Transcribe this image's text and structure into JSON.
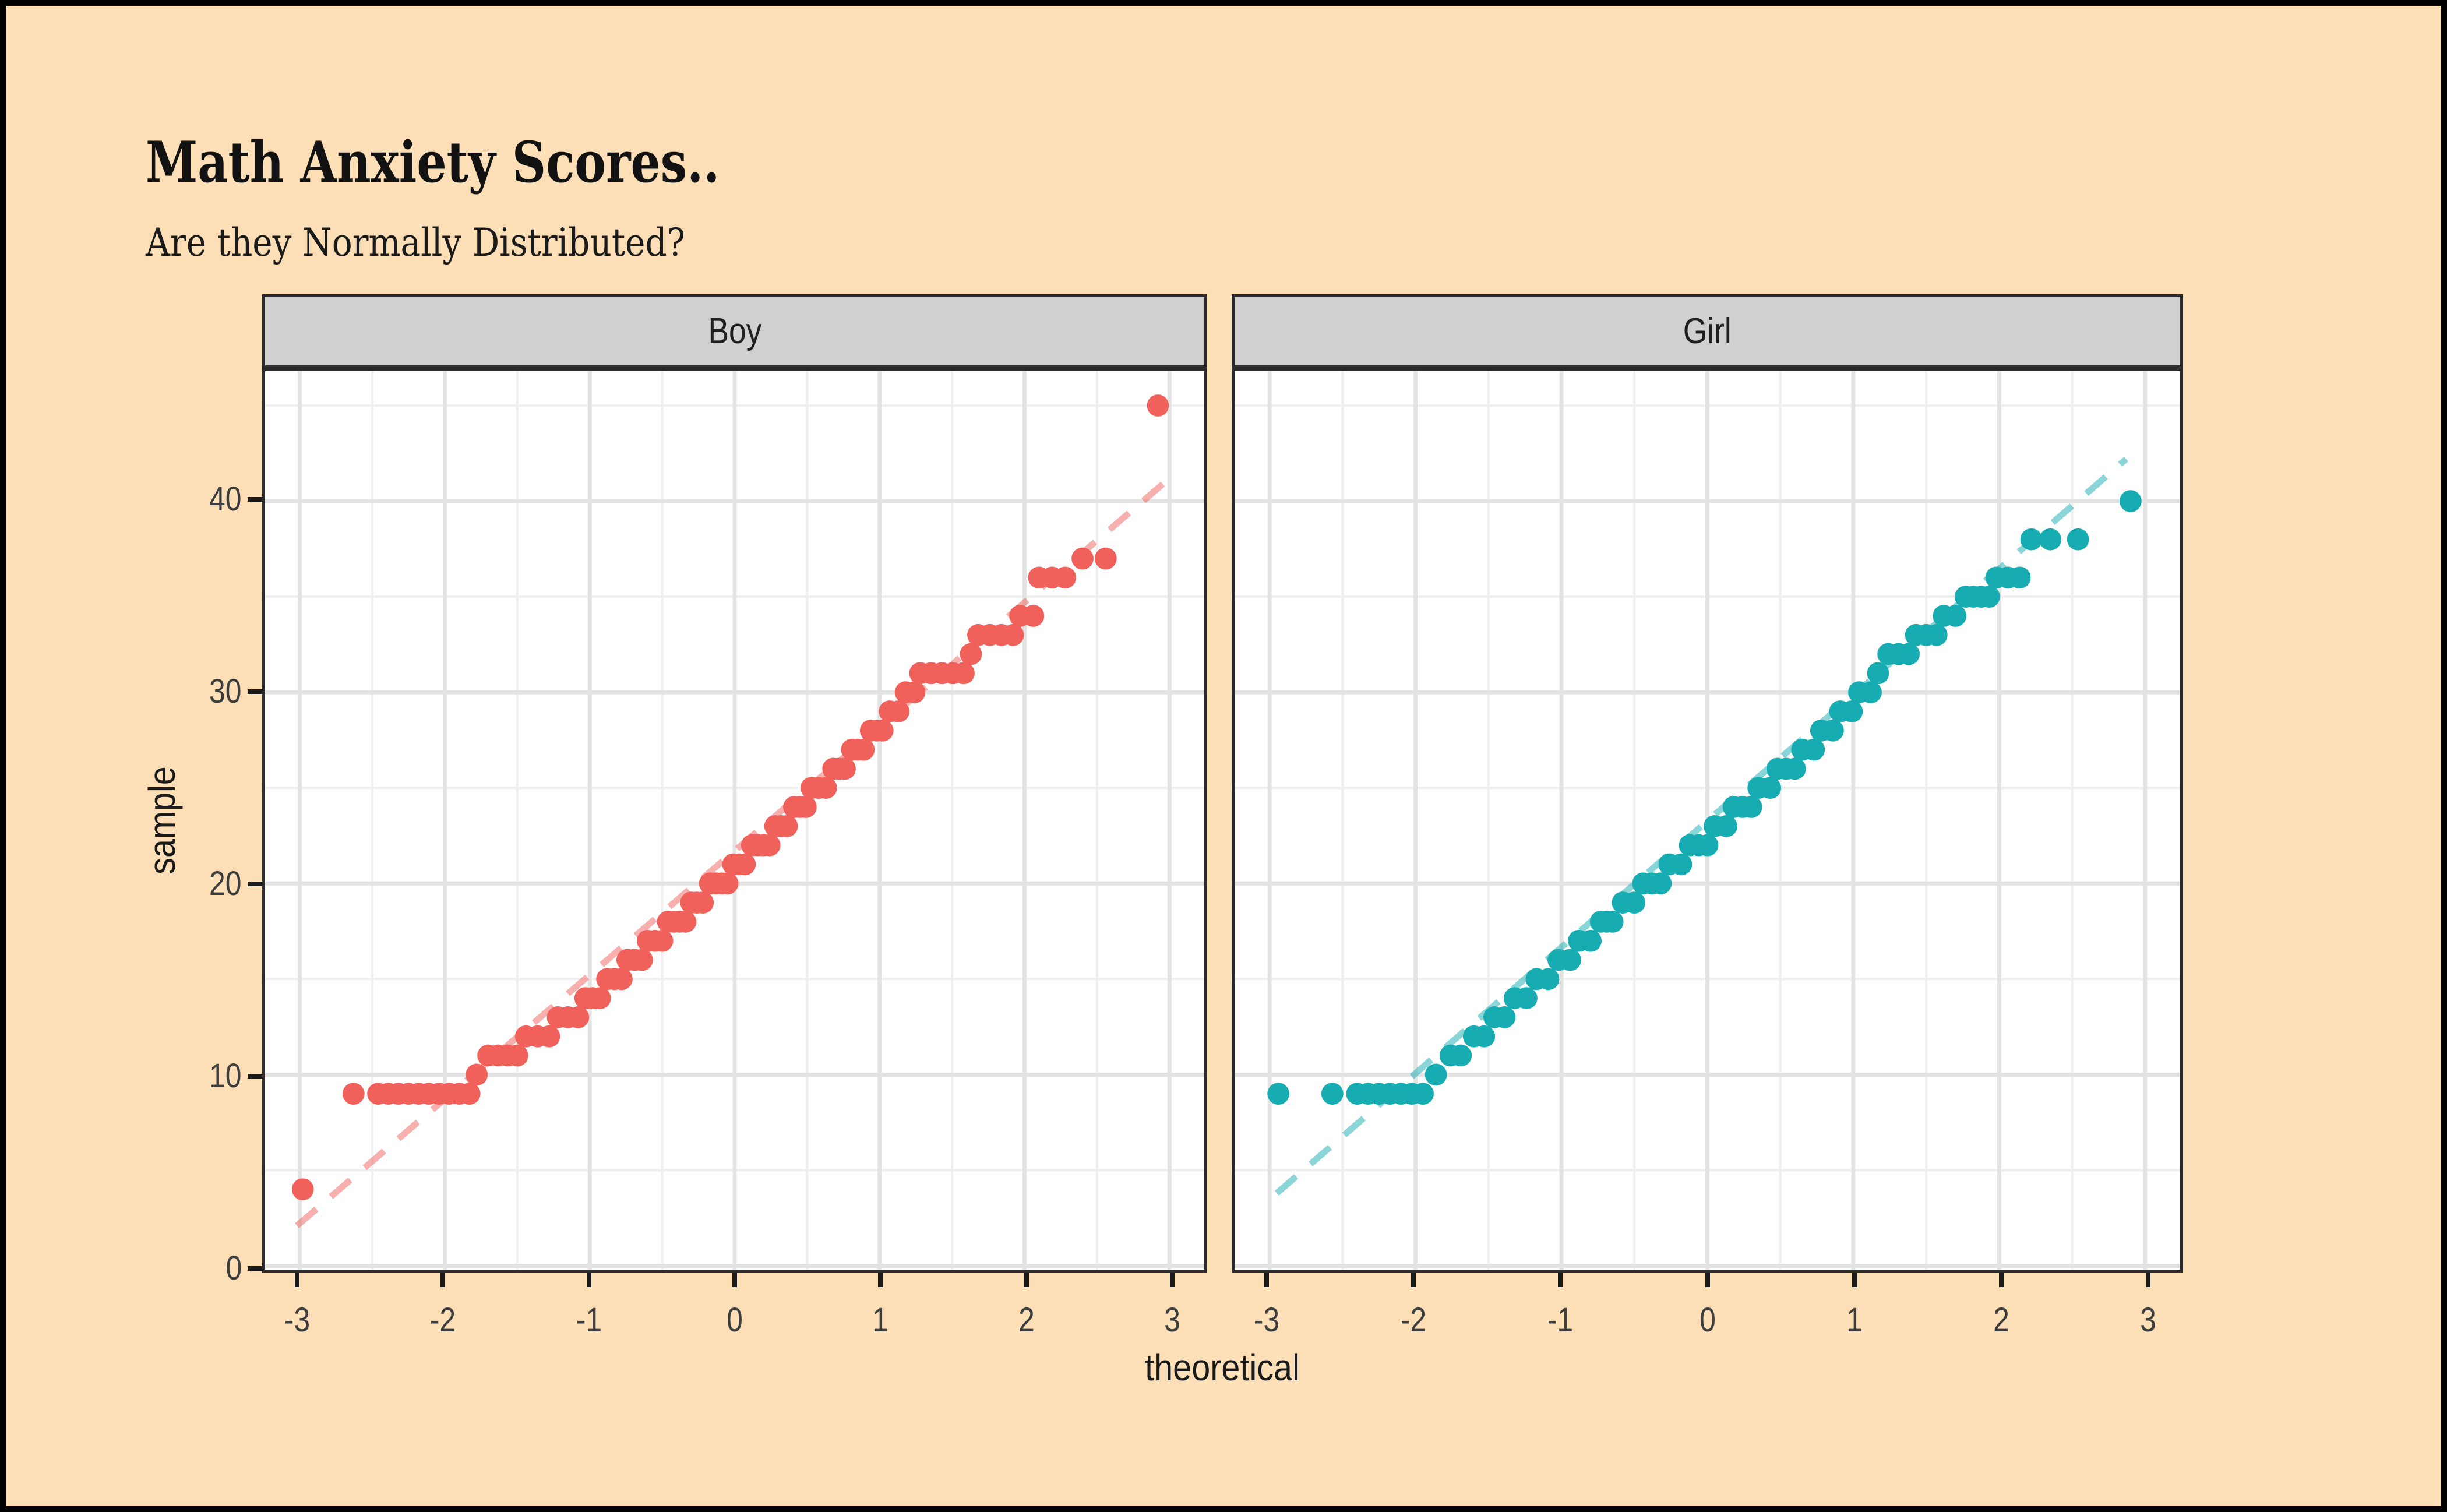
{
  "frame": {
    "background": "#FCDFB7",
    "border_color": "#000000"
  },
  "header": {
    "title": "Math Anxiety Scores..",
    "subtitle": "Are they Normally Distributed?"
  },
  "chart_data": {
    "type": "scatter",
    "subtype": "faceted-qq-plot",
    "title": "Math Anxiety Scores..",
    "subtitle": "Are they Normally Distributed?",
    "xlabel": "theoretical",
    "ylabel": "sample",
    "x_ticks": [
      -3,
      -2,
      -1,
      0,
      1,
      2,
      3
    ],
    "y_ticks": [
      0,
      10,
      20,
      30,
      40
    ],
    "xlim": [
      -3.24,
      3.24
    ],
    "ylim": [
      -0.2,
      46.8
    ],
    "grid": {
      "major_color": "#E3E3E3",
      "minor_color": "#EFEFEF",
      "x_minor": [
        -2.5,
        -1.5,
        -0.5,
        0.5,
        1.5,
        2.5
      ],
      "y_minor": [
        5,
        15,
        25,
        35,
        45
      ]
    },
    "panel_background": "#FFFFFF",
    "strip_background": "#D0D0D0",
    "strip_border": "#2B2B2B",
    "point_radius": 19,
    "legend": "none",
    "facets": [
      {
        "label": "Boy",
        "point_color": "#F0615C",
        "line_color": "rgba(240,97,92,0.5)",
        "qq_line": {
          "x1": -3.02,
          "y1": 2.1,
          "x2": 2.97,
          "y2": 41.0
        },
        "runs_format": [
          "sample_y",
          "x_from",
          "x_to",
          "count"
        ],
        "runs": [
          [
            4,
            -2.98,
            -2.98,
            1
          ],
          [
            9,
            -2.63,
            -2.63,
            1
          ],
          [
            9,
            -2.46,
            -1.83,
            10
          ],
          [
            10,
            -1.78,
            -1.78,
            1
          ],
          [
            11,
            -1.7,
            -1.5,
            4
          ],
          [
            12,
            -1.44,
            -1.28,
            3
          ],
          [
            13,
            -1.22,
            -1.08,
            3
          ],
          [
            14,
            -1.03,
            -0.93,
            3
          ],
          [
            15,
            -0.88,
            -0.78,
            3
          ],
          [
            16,
            -0.74,
            -0.64,
            3
          ],
          [
            17,
            -0.6,
            -0.5,
            3
          ],
          [
            18,
            -0.46,
            -0.34,
            4
          ],
          [
            19,
            -0.3,
            -0.22,
            3
          ],
          [
            20,
            -0.17,
            -0.05,
            4
          ],
          [
            21,
            -0.01,
            0.07,
            3
          ],
          [
            22,
            0.12,
            0.24,
            4
          ],
          [
            23,
            0.28,
            0.36,
            3
          ],
          [
            24,
            0.41,
            0.49,
            3
          ],
          [
            25,
            0.53,
            0.63,
            3
          ],
          [
            26,
            0.68,
            0.76,
            3
          ],
          [
            27,
            0.81,
            0.89,
            3
          ],
          [
            28,
            0.94,
            1.02,
            3
          ],
          [
            29,
            1.07,
            1.13,
            2
          ],
          [
            30,
            1.18,
            1.24,
            2
          ],
          [
            31,
            1.28,
            1.58,
            5
          ],
          [
            32,
            1.63,
            1.63,
            1
          ],
          [
            33,
            1.68,
            1.92,
            4
          ],
          [
            34,
            1.97,
            2.06,
            2
          ],
          [
            36,
            2.1,
            2.28,
            3
          ],
          [
            37,
            2.4,
            2.56,
            2
          ],
          [
            45,
            2.92,
            2.92,
            1
          ]
        ]
      },
      {
        "label": "Girl",
        "point_color": "#16ACB2",
        "line_color": "rgba(22,172,178,0.5)",
        "qq_line": {
          "x1": -2.95,
          "y1": 3.8,
          "x2": 2.87,
          "y2": 42.2
        },
        "runs_format": [
          "sample_y",
          "x_from",
          "x_to",
          "count"
        ],
        "runs": [
          [
            9,
            -2.94,
            -2.94,
            1
          ],
          [
            9,
            -2.57,
            -2.57,
            1
          ],
          [
            9,
            -2.4,
            -1.95,
            7
          ],
          [
            10,
            -1.86,
            -1.86,
            1
          ],
          [
            11,
            -1.76,
            -1.69,
            2
          ],
          [
            12,
            -1.6,
            -1.53,
            2
          ],
          [
            13,
            -1.46,
            -1.39,
            2
          ],
          [
            14,
            -1.32,
            -1.24,
            2
          ],
          [
            15,
            -1.17,
            -1.09,
            2
          ],
          [
            16,
            -1.02,
            -0.94,
            2
          ],
          [
            17,
            -0.88,
            -0.8,
            2
          ],
          [
            18,
            -0.73,
            -0.65,
            3
          ],
          [
            19,
            -0.58,
            -0.5,
            2
          ],
          [
            20,
            -0.44,
            -0.32,
            3
          ],
          [
            21,
            -0.26,
            -0.18,
            2
          ],
          [
            22,
            -0.12,
            0.0,
            3
          ],
          [
            23,
            0.05,
            0.13,
            2
          ],
          [
            24,
            0.18,
            0.3,
            3
          ],
          [
            25,
            0.35,
            0.43,
            2
          ],
          [
            26,
            0.48,
            0.6,
            3
          ],
          [
            27,
            0.65,
            0.73,
            2
          ],
          [
            28,
            0.78,
            0.86,
            2
          ],
          [
            29,
            0.91,
            0.99,
            2
          ],
          [
            30,
            1.04,
            1.12,
            2
          ],
          [
            31,
            1.17,
            1.17,
            1
          ],
          [
            32,
            1.24,
            1.38,
            3
          ],
          [
            33,
            1.43,
            1.57,
            3
          ],
          [
            34,
            1.62,
            1.7,
            2
          ],
          [
            35,
            1.77,
            1.93,
            4
          ],
          [
            36,
            1.98,
            2.14,
            3
          ],
          [
            38,
            2.22,
            2.22,
            1
          ],
          [
            38,
            2.35,
            2.35,
            1
          ],
          [
            38,
            2.54,
            2.54,
            1
          ],
          [
            40,
            2.9,
            2.9,
            1
          ]
        ]
      }
    ]
  },
  "axis": {
    "tick_color": "#1A1A1A",
    "tick_label_color": "#3D3D3D",
    "axis_title_color": "#1A1A1A"
  }
}
